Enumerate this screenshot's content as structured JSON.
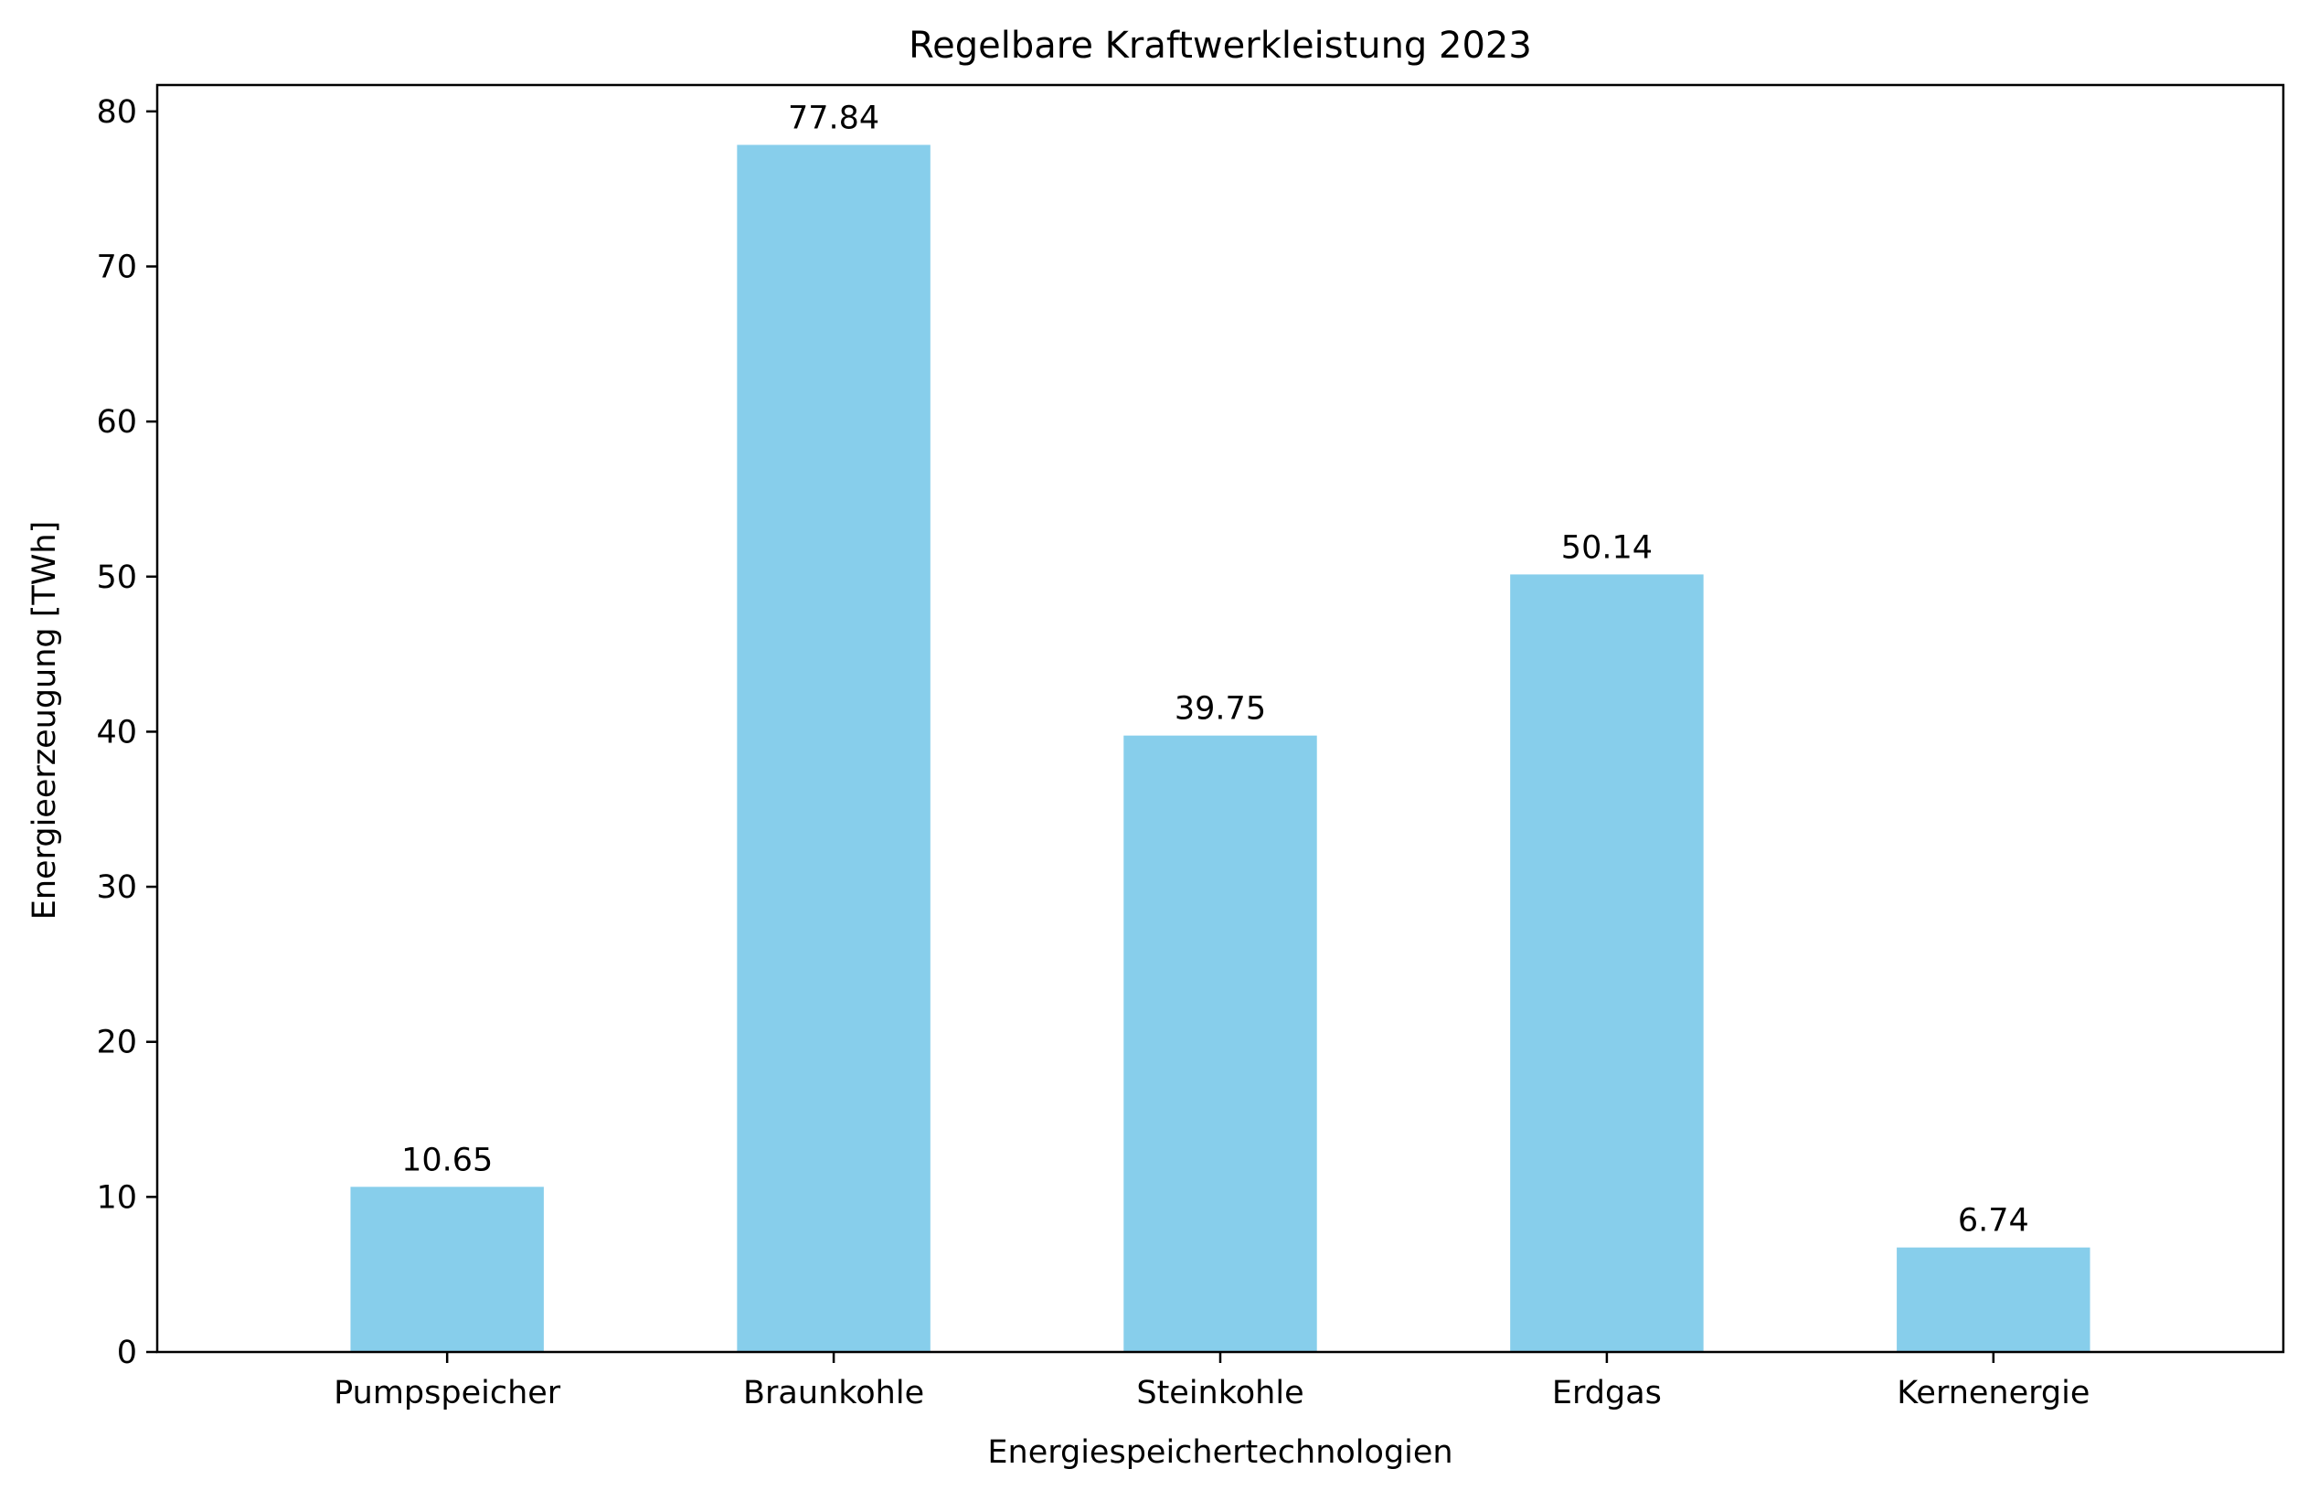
{
  "chart_data": {
    "type": "bar",
    "title": "Regelbare Kraftwerkleistung 2023",
    "xlabel": "Energiespeichertechnologien",
    "ylabel": "Energieerzeugung [TWh]",
    "categories": [
      "Pumpspeicher",
      "Braunkohle",
      "Steinkohle",
      "Erdgas",
      "Kernenergie"
    ],
    "values": [
      10.65,
      77.84,
      39.75,
      50.14,
      6.74
    ],
    "value_labels": [
      "10.65",
      "77.84",
      "39.75",
      "50.14",
      "6.74"
    ],
    "ylim": [
      0,
      81.7
    ],
    "yticks": [
      0,
      10,
      20,
      30,
      40,
      50,
      60,
      70,
      80
    ],
    "grid": false,
    "bar_color": "#87CEEB",
    "axis_color": "#000000"
  }
}
